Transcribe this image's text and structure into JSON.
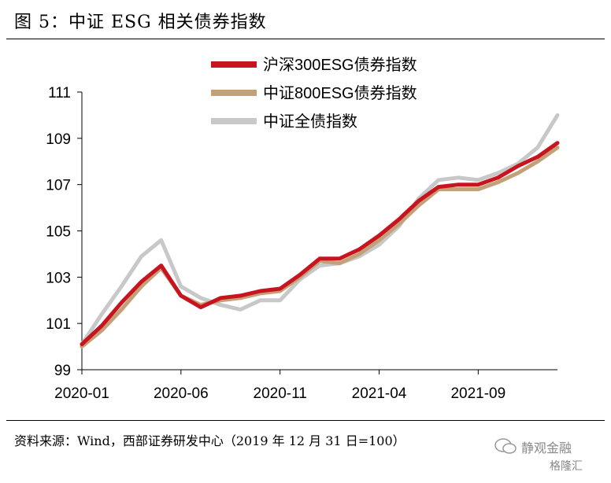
{
  "header": {
    "title": "图 5：中证 ESG 相关债券指数"
  },
  "footer": {
    "source": "资料来源：Wind，西部证券研发中心（2019 年 12 月 31 日=100）"
  },
  "watermark": {
    "brand": "静观金融",
    "sub": "格隆汇"
  },
  "chart_data": {
    "type": "line",
    "ylim": [
      99,
      111
    ],
    "yticks": [
      "99",
      "101",
      "103",
      "105",
      "107",
      "109",
      "111"
    ],
    "xticks": [
      "2020-01",
      "2020-06",
      "2020-11",
      "2021-04",
      "2021-09"
    ],
    "x": [
      "2020-01",
      "2020-02",
      "2020-03",
      "2020-04",
      "2020-05",
      "2020-06",
      "2020-07",
      "2020-08",
      "2020-09",
      "2020-10",
      "2020-11",
      "2020-12",
      "2021-01",
      "2021-02",
      "2021-03",
      "2021-04",
      "2021-05",
      "2021-06",
      "2021-07",
      "2021-08",
      "2021-09",
      "2021-10",
      "2021-11",
      "2021-12",
      "2022-01"
    ],
    "legend_position": "top-right",
    "colors": {
      "hs300": "#c8141e",
      "zz800": "#c4a078",
      "zzall": "#c8c8c8"
    },
    "series": [
      {
        "key": "hs300",
        "name": "沪深300ESG债券指数",
        "values": [
          100.1,
          100.9,
          101.9,
          102.8,
          103.5,
          102.2,
          101.7,
          102.1,
          102.2,
          102.4,
          102.5,
          103.1,
          103.8,
          103.8,
          104.2,
          104.8,
          105.5,
          106.3,
          106.9,
          107.0,
          107.0,
          107.3,
          107.8,
          108.2,
          108.8
        ]
      },
      {
        "key": "zz800",
        "name": "中证800ESG债券指数",
        "values": [
          100.0,
          100.7,
          101.6,
          102.6,
          103.4,
          102.2,
          101.8,
          102.0,
          102.1,
          102.3,
          102.4,
          103.0,
          103.7,
          103.6,
          104.0,
          104.6,
          105.3,
          106.1,
          106.8,
          106.8,
          106.8,
          107.1,
          107.5,
          108.0,
          108.6
        ]
      },
      {
        "key": "zzall",
        "name": "中证全债指数",
        "values": [
          100.1,
          101.4,
          102.6,
          103.9,
          104.6,
          102.6,
          102.1,
          101.8,
          101.6,
          102.0,
          102.0,
          102.9,
          103.5,
          103.6,
          103.9,
          104.4,
          105.2,
          106.4,
          107.2,
          107.3,
          107.2,
          107.5,
          107.9,
          108.6,
          110.0
        ]
      }
    ]
  }
}
